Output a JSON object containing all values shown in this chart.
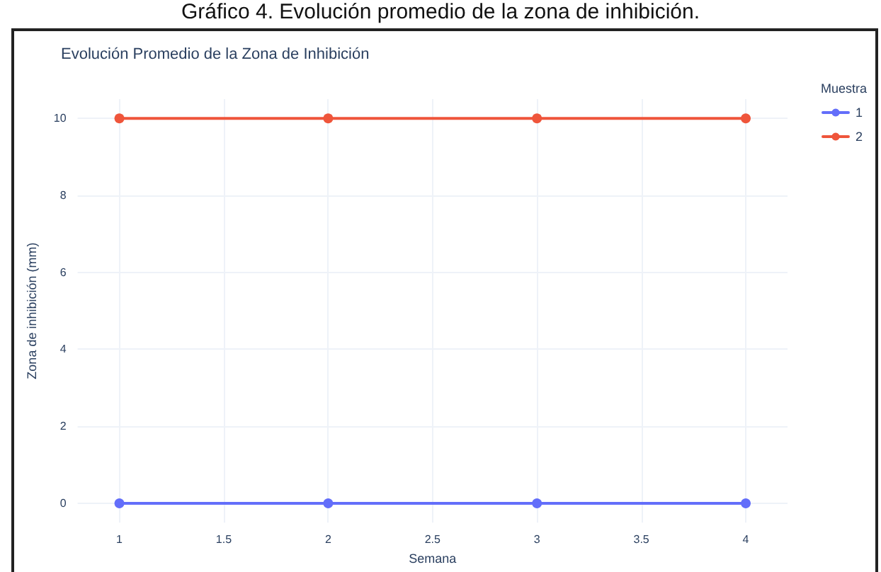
{
  "chart_data": {
    "type": "line",
    "title": "Evolución Promedio de la Zona de Inhibición",
    "xlabel": "Semana",
    "ylabel": "Zona de inhibición (mm)",
    "legend_title": "Muestra",
    "annotations": [
      "Gráfico 4. Evolución promedio de la zona de inhibición."
    ],
    "x": [
      1,
      2,
      3,
      4
    ],
    "series": [
      {
        "name": "1",
        "color": "#636efa",
        "values": [
          0,
          0,
          0,
          0
        ]
      },
      {
        "name": "2",
        "color": "#ef553b",
        "values": [
          10,
          10,
          10,
          10
        ]
      }
    ],
    "xlim": [
      0.8,
      4.2
    ],
    "xticks": [
      1,
      1.5,
      2,
      2.5,
      3,
      3.5,
      4
    ],
    "ylim": [
      -0.5,
      10.5
    ],
    "yticks": [
      0,
      2,
      4,
      6,
      8,
      10
    ],
    "grid": true,
    "legend": "top right",
    "marker": "circle",
    "line_style": "solid"
  }
}
